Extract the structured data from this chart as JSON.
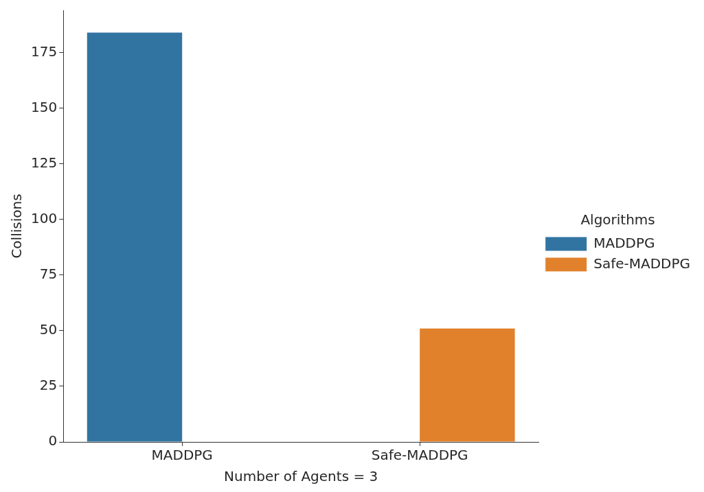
{
  "chart_data": {
    "type": "bar",
    "xlabel": "Number of Agents = 3",
    "ylabel": "Collisions",
    "legend_title": "Algorithms",
    "categories": [
      "MADDPG",
      "Safe-MADDPG"
    ],
    "series": [
      {
        "name": "MADDPG",
        "color": "#3274a1",
        "values": [
          184,
          null
        ]
      },
      {
        "name": "Safe-MADDPG",
        "color": "#e1812c",
        "values": [
          null,
          51
        ]
      }
    ],
    "ylim": [
      0,
      194
    ],
    "yticks": [
      0,
      25,
      50,
      75,
      100,
      125,
      150,
      175
    ],
    "grid": false,
    "legend": "right"
  }
}
